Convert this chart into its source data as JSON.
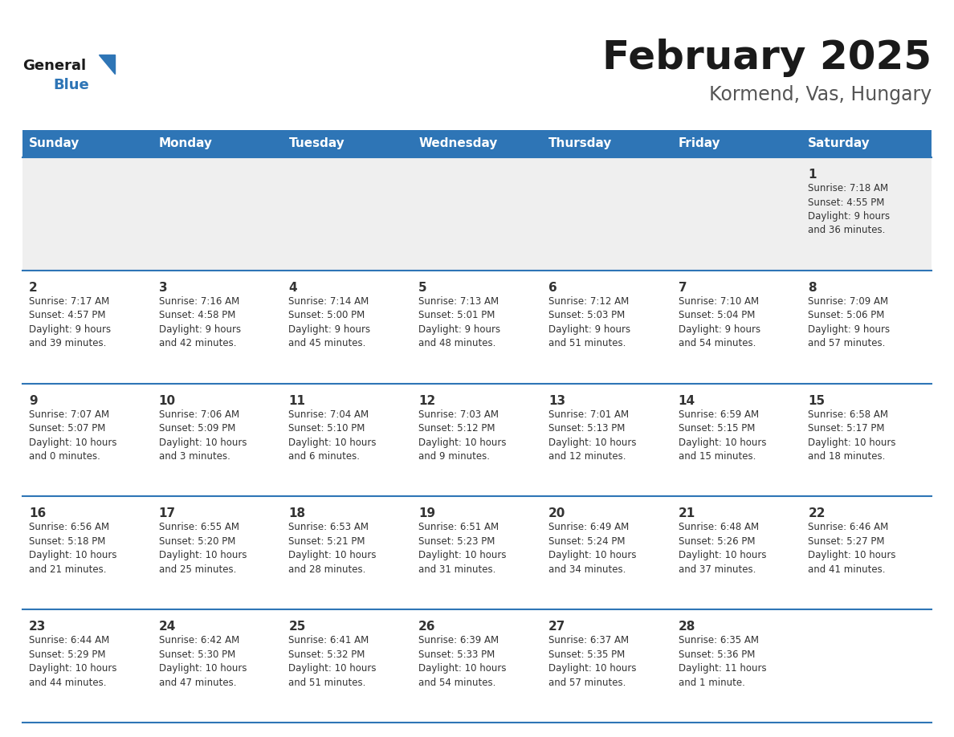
{
  "title": "February 2025",
  "subtitle": "Kormend, Vas, Hungary",
  "days_of_week": [
    "Sunday",
    "Monday",
    "Tuesday",
    "Wednesday",
    "Thursday",
    "Friday",
    "Saturday"
  ],
  "header_bg": "#2E75B6",
  "header_text_color": "#FFFFFF",
  "row0_bg": "#EFEFEF",
  "cell_bg": "#FFFFFF",
  "cell_text_color": "#333333",
  "day_num_color": "#333333",
  "line_color": "#2E75B6",
  "title_color": "#1a1a1a",
  "subtitle_color": "#555555",
  "logo_general_color": "#1a1a1a",
  "logo_blue_color": "#2E75B6",
  "calendar_data": [
    [
      null,
      null,
      null,
      null,
      null,
      null,
      {
        "day": 1,
        "sunrise": "7:18 AM",
        "sunset": "4:55 PM",
        "daylight": "9 hours",
        "daylight2": "and 36 minutes."
      }
    ],
    [
      {
        "day": 2,
        "sunrise": "7:17 AM",
        "sunset": "4:57 PM",
        "daylight": "9 hours",
        "daylight2": "and 39 minutes."
      },
      {
        "day": 3,
        "sunrise": "7:16 AM",
        "sunset": "4:58 PM",
        "daylight": "9 hours",
        "daylight2": "and 42 minutes."
      },
      {
        "day": 4,
        "sunrise": "7:14 AM",
        "sunset": "5:00 PM",
        "daylight": "9 hours",
        "daylight2": "and 45 minutes."
      },
      {
        "day": 5,
        "sunrise": "7:13 AM",
        "sunset": "5:01 PM",
        "daylight": "9 hours",
        "daylight2": "and 48 minutes."
      },
      {
        "day": 6,
        "sunrise": "7:12 AM",
        "sunset": "5:03 PM",
        "daylight": "9 hours",
        "daylight2": "and 51 minutes."
      },
      {
        "day": 7,
        "sunrise": "7:10 AM",
        "sunset": "5:04 PM",
        "daylight": "9 hours",
        "daylight2": "and 54 minutes."
      },
      {
        "day": 8,
        "sunrise": "7:09 AM",
        "sunset": "5:06 PM",
        "daylight": "9 hours",
        "daylight2": "and 57 minutes."
      }
    ],
    [
      {
        "day": 9,
        "sunrise": "7:07 AM",
        "sunset": "5:07 PM",
        "daylight": "10 hours",
        "daylight2": "and 0 minutes."
      },
      {
        "day": 10,
        "sunrise": "7:06 AM",
        "sunset": "5:09 PM",
        "daylight": "10 hours",
        "daylight2": "and 3 minutes."
      },
      {
        "day": 11,
        "sunrise": "7:04 AM",
        "sunset": "5:10 PM",
        "daylight": "10 hours",
        "daylight2": "and 6 minutes."
      },
      {
        "day": 12,
        "sunrise": "7:03 AM",
        "sunset": "5:12 PM",
        "daylight": "10 hours",
        "daylight2": "and 9 minutes."
      },
      {
        "day": 13,
        "sunrise": "7:01 AM",
        "sunset": "5:13 PM",
        "daylight": "10 hours",
        "daylight2": "and 12 minutes."
      },
      {
        "day": 14,
        "sunrise": "6:59 AM",
        "sunset": "5:15 PM",
        "daylight": "10 hours",
        "daylight2": "and 15 minutes."
      },
      {
        "day": 15,
        "sunrise": "6:58 AM",
        "sunset": "5:17 PM",
        "daylight": "10 hours",
        "daylight2": "and 18 minutes."
      }
    ],
    [
      {
        "day": 16,
        "sunrise": "6:56 AM",
        "sunset": "5:18 PM",
        "daylight": "10 hours",
        "daylight2": "and 21 minutes."
      },
      {
        "day": 17,
        "sunrise": "6:55 AM",
        "sunset": "5:20 PM",
        "daylight": "10 hours",
        "daylight2": "and 25 minutes."
      },
      {
        "day": 18,
        "sunrise": "6:53 AM",
        "sunset": "5:21 PM",
        "daylight": "10 hours",
        "daylight2": "and 28 minutes."
      },
      {
        "day": 19,
        "sunrise": "6:51 AM",
        "sunset": "5:23 PM",
        "daylight": "10 hours",
        "daylight2": "and 31 minutes."
      },
      {
        "day": 20,
        "sunrise": "6:49 AM",
        "sunset": "5:24 PM",
        "daylight": "10 hours",
        "daylight2": "and 34 minutes."
      },
      {
        "day": 21,
        "sunrise": "6:48 AM",
        "sunset": "5:26 PM",
        "daylight": "10 hours",
        "daylight2": "and 37 minutes."
      },
      {
        "day": 22,
        "sunrise": "6:46 AM",
        "sunset": "5:27 PM",
        "daylight": "10 hours",
        "daylight2": "and 41 minutes."
      }
    ],
    [
      {
        "day": 23,
        "sunrise": "6:44 AM",
        "sunset": "5:29 PM",
        "daylight": "10 hours",
        "daylight2": "and 44 minutes."
      },
      {
        "day": 24,
        "sunrise": "6:42 AM",
        "sunset": "5:30 PM",
        "daylight": "10 hours",
        "daylight2": "and 47 minutes."
      },
      {
        "day": 25,
        "sunrise": "6:41 AM",
        "sunset": "5:32 PM",
        "daylight": "10 hours",
        "daylight2": "and 51 minutes."
      },
      {
        "day": 26,
        "sunrise": "6:39 AM",
        "sunset": "5:33 PM",
        "daylight": "10 hours",
        "daylight2": "and 54 minutes."
      },
      {
        "day": 27,
        "sunrise": "6:37 AM",
        "sunset": "5:35 PM",
        "daylight": "10 hours",
        "daylight2": "and 57 minutes."
      },
      {
        "day": 28,
        "sunrise": "6:35 AM",
        "sunset": "5:36 PM",
        "daylight": "11 hours",
        "daylight2": "and 1 minute."
      },
      null
    ]
  ]
}
